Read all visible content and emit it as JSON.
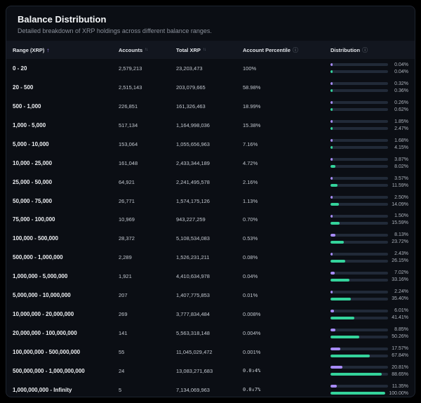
{
  "header": {
    "title": "Balance Distribution",
    "subtitle": "Detailed breakdown of XRP holdings across different balance ranges."
  },
  "colors": {
    "purple": "#a78bfa",
    "green": "#34d39b",
    "track": "#212a38",
    "card_bg": "#0b0e14",
    "header_bg": "#12161f"
  },
  "table": {
    "columns": [
      {
        "label": "Range (XRP)",
        "sort": "asc",
        "icon": "sort-ascending-icon"
      },
      {
        "label": "Accounts",
        "sort": "both",
        "icon": "sort-icon"
      },
      {
        "label": "Total XRP",
        "sort": "both",
        "icon": "sort-icon"
      },
      {
        "label": "Account Percentile",
        "icon": "info-icon"
      },
      {
        "label": "Distribution",
        "icon": "info-icon"
      }
    ],
    "sort_asc_glyph": "↑",
    "sort_both_glyph": "↑↓",
    "info_glyph": "ⓘ",
    "rows": [
      {
        "range": "0 - 20",
        "accounts": "2,579,213",
        "total_xrp": "23,203,473",
        "percentile": "100%",
        "percentile_mono": false,
        "share_pct": 0.04,
        "share_label": "0.04%",
        "cum_pct": 0.04,
        "cum_label": "0.04%"
      },
      {
        "range": "20 - 500",
        "accounts": "2,515,143",
        "total_xrp": "203,079,665",
        "percentile": "58.98%",
        "percentile_mono": false,
        "share_pct": 0.32,
        "share_label": "0.32%",
        "cum_pct": 0.36,
        "cum_label": "0.36%"
      },
      {
        "range": "500 - 1,000",
        "accounts": "226,851",
        "total_xrp": "161,326,463",
        "percentile": "18.99%",
        "percentile_mono": false,
        "share_pct": 0.26,
        "share_label": "0.26%",
        "cum_pct": 0.62,
        "cum_label": "0.62%"
      },
      {
        "range": "1,000 - 5,000",
        "accounts": "517,134",
        "total_xrp": "1,164,998,036",
        "percentile": "15.38%",
        "percentile_mono": false,
        "share_pct": 1.85,
        "share_label": "1.85%",
        "cum_pct": 2.47,
        "cum_label": "2.47%"
      },
      {
        "range": "5,000 - 10,000",
        "accounts": "153,064",
        "total_xrp": "1,055,656,963",
        "percentile": "7.16%",
        "percentile_mono": false,
        "share_pct": 1.68,
        "share_label": "1.68%",
        "cum_pct": 4.15,
        "cum_label": "4.15%"
      },
      {
        "range": "10,000 - 25,000",
        "accounts": "161,048",
        "total_xrp": "2,433,344,189",
        "percentile": "4.72%",
        "percentile_mono": false,
        "share_pct": 3.87,
        "share_label": "3.87%",
        "cum_pct": 8.02,
        "cum_label": "8.02%"
      },
      {
        "range": "25,000 - 50,000",
        "accounts": "64,921",
        "total_xrp": "2,241,495,578",
        "percentile": "2.16%",
        "percentile_mono": false,
        "share_pct": 3.57,
        "share_label": "3.57%",
        "cum_pct": 11.59,
        "cum_label": "11.59%"
      },
      {
        "range": "50,000 - 75,000",
        "accounts": "26,771",
        "total_xrp": "1,574,175,126",
        "percentile": "1.13%",
        "percentile_mono": false,
        "share_pct": 2.5,
        "share_label": "2.50%",
        "cum_pct": 14.09,
        "cum_label": "14.09%"
      },
      {
        "range": "75,000 - 100,000",
        "accounts": "10,969",
        "total_xrp": "943,227,259",
        "percentile": "0.70%",
        "percentile_mono": false,
        "share_pct": 1.5,
        "share_label": "1.50%",
        "cum_pct": 15.59,
        "cum_label": "15.59%"
      },
      {
        "range": "100,000 - 500,000",
        "accounts": "28,372",
        "total_xrp": "5,108,534,083",
        "percentile": "0.53%",
        "percentile_mono": false,
        "share_pct": 8.13,
        "share_label": "8.13%",
        "cum_pct": 23.72,
        "cum_label": "23.72%"
      },
      {
        "range": "500,000 - 1,000,000",
        "accounts": "2,289",
        "total_xrp": "1,526,231,211",
        "percentile": "0.08%",
        "percentile_mono": false,
        "share_pct": 2.43,
        "share_label": "2.43%",
        "cum_pct": 26.15,
        "cum_label": "26.15%"
      },
      {
        "range": "1,000,000 - 5,000,000",
        "accounts": "1,921",
        "total_xrp": "4,410,634,978",
        "percentile": "0.04%",
        "percentile_mono": false,
        "share_pct": 7.02,
        "share_label": "7.02%",
        "cum_pct": 33.16,
        "cum_label": "33.16%"
      },
      {
        "range": "5,000,000 - 10,000,000",
        "accounts": "207",
        "total_xrp": "1,407,775,853",
        "percentile": "0.01%",
        "percentile_mono": false,
        "share_pct": 2.24,
        "share_label": "2.24%",
        "cum_pct": 35.4,
        "cum_label": "35.40%"
      },
      {
        "range": "10,000,000 - 20,000,000",
        "accounts": "269",
        "total_xrp": "3,777,834,484",
        "percentile": "0.008%",
        "percentile_mono": false,
        "share_pct": 6.01,
        "share_label": "6.01%",
        "cum_pct": 41.41,
        "cum_label": "41.41%"
      },
      {
        "range": "20,000,000 - 100,000,000",
        "accounts": "141",
        "total_xrp": "5,563,318,148",
        "percentile": "0.004%",
        "percentile_mono": false,
        "share_pct": 8.85,
        "share_label": "8.85%",
        "cum_pct": 50.26,
        "cum_label": "50.26%"
      },
      {
        "range": "100,000,000 - 500,000,000",
        "accounts": "55",
        "total_xrp": "11,045,029,472",
        "percentile": "0.001%",
        "percentile_mono": false,
        "share_pct": 17.57,
        "share_label": "17.57%",
        "cum_pct": 67.84,
        "cum_label": "67.84%"
      },
      {
        "range": "500,000,000 - 1,000,000,000",
        "accounts": "24",
        "total_xrp": "13,083,271,683",
        "percentile": "0.0₃4%",
        "percentile_mono": true,
        "share_pct": 20.81,
        "share_label": "20.81%",
        "cum_pct": 88.65,
        "cum_label": "88.65%"
      },
      {
        "range": "1,000,000,000 - Infinity",
        "accounts": "5",
        "total_xrp": "7,134,069,963",
        "percentile": "0.0₄7%",
        "percentile_mono": true,
        "share_pct": 11.35,
        "share_label": "11.35%",
        "cum_pct": 100.0,
        "cum_label": "100.00%"
      }
    ]
  }
}
